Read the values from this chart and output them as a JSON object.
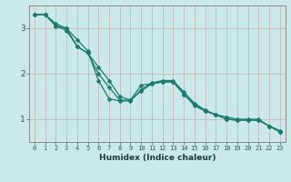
{
  "xlabel": "Humidex (Indice chaleur)",
  "ylabel": "",
  "bg_color": "#cce9e9",
  "line_color": "#1a7a6e",
  "grid_color": "#c4b8b8",
  "xlim": [
    -0.5,
    23.5
  ],
  "ylim": [
    0.5,
    3.5
  ],
  "yticks": [
    1,
    2,
    3
  ],
  "xticks": [
    0,
    1,
    2,
    3,
    4,
    5,
    6,
    7,
    8,
    9,
    10,
    11,
    12,
    13,
    14,
    15,
    16,
    17,
    18,
    19,
    20,
    21,
    22,
    23
  ],
  "series1_x": [
    0,
    1,
    2,
    3,
    4,
    5,
    6,
    7,
    8,
    9,
    10,
    11,
    12,
    13,
    14,
    15,
    16,
    17,
    18,
    19,
    20,
    21,
    22,
    23
  ],
  "series1_y": [
    3.3,
    3.3,
    3.1,
    3.0,
    2.75,
    2.5,
    1.85,
    1.45,
    1.4,
    1.4,
    1.65,
    1.8,
    1.85,
    1.85,
    1.6,
    1.35,
    1.2,
    1.1,
    1.05,
    1.0,
    1.0,
    1.0,
    0.85,
    0.75
  ],
  "series2_x": [
    0,
    1,
    2,
    3,
    4,
    5,
    6,
    7,
    8,
    9,
    10,
    11,
    12,
    13,
    14,
    15,
    16,
    17,
    18,
    19,
    20,
    21,
    22,
    23
  ],
  "series2_y": [
    3.3,
    3.3,
    3.05,
    2.95,
    2.6,
    2.45,
    2.15,
    1.85,
    1.5,
    1.42,
    1.75,
    1.78,
    1.82,
    1.82,
    1.55,
    1.3,
    1.18,
    1.1,
    1.0,
    0.98,
    0.98,
    0.98,
    0.85,
    0.72
  ],
  "series3_x": [
    0,
    1,
    2,
    3,
    4,
    5,
    6,
    7,
    8,
    9,
    10,
    11,
    12,
    13,
    14,
    15,
    16,
    17,
    18,
    19,
    20,
    21,
    22,
    23
  ],
  "series3_y": [
    3.3,
    3.3,
    3.05,
    3.0,
    2.6,
    2.45,
    2.0,
    1.7,
    1.42,
    1.42,
    1.62,
    1.78,
    1.82,
    1.82,
    1.55,
    1.32,
    1.18,
    1.1,
    1.0,
    0.98,
    0.98,
    0.98,
    0.85,
    0.72
  ],
  "tick_fontsize": 5.0,
  "xlabel_fontsize": 6.5,
  "ytick_fontsize": 6.5,
  "marker_size": 2.5,
  "line_width": 0.9
}
